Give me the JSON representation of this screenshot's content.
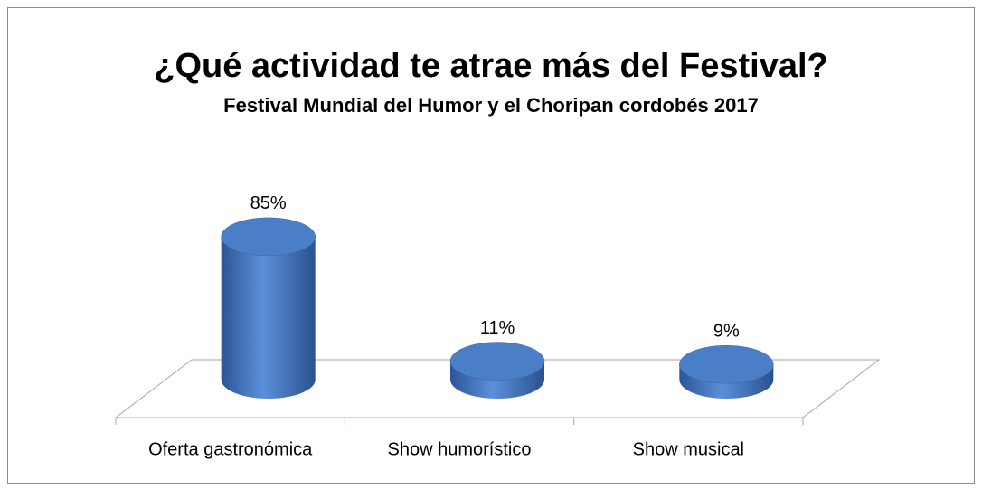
{
  "chart_data": {
    "type": "bar3d",
    "title": "¿Qué actividad te atrae más del Festival?",
    "subtitle": "Festival Mundial del Humor y el Choripan cordobés 2017",
    "categories": [
      "Oferta gastronómica",
      "Show humorístico",
      "Show musical"
    ],
    "values": [
      85,
      11,
      9
    ],
    "value_labels": [
      "85%",
      "11%",
      "9%"
    ],
    "color": "#4a7fc8"
  }
}
